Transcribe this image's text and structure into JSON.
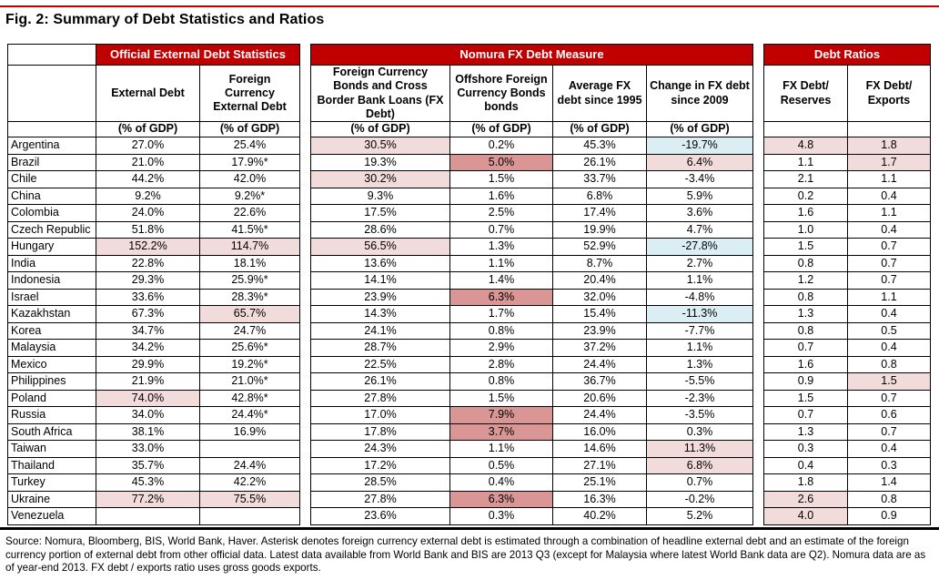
{
  "title": "Fig. 2: Summary of Debt Statistics and Ratios",
  "colors": {
    "header_bg": "#C00000",
    "top_rule_red": "#C00000",
    "highlight_light_pink": "#F2DCDB",
    "highlight_rose": "#D99694",
    "highlight_light_blue": "#DAEEF3",
    "border": "#000000"
  },
  "table": {
    "groups": [
      {
        "label": "Official External Debt Statistics",
        "span": 2
      },
      {
        "label": "Nomura FX Debt Measure",
        "span": 4
      },
      {
        "label": "Debt Ratios",
        "span": 2
      }
    ],
    "gap_after": [
      1,
      5
    ],
    "columns": [
      {
        "label": "External Debt",
        "unit": "(% of GDP)"
      },
      {
        "label": "Foreign Currency External Debt",
        "unit": "(% of GDP)"
      },
      {
        "label": "Foreign Currency Bonds and Cross Border Bank Loans (FX Debt)",
        "unit": "(% of GDP)"
      },
      {
        "label": "Offshore Foreign Currency Bonds bonds",
        "unit": "(% of GDP)"
      },
      {
        "label": "Average FX debt since 1995",
        "unit": "(% of GDP)"
      },
      {
        "label": "Change in FX debt since 2009",
        "unit": "(% of GDP)"
      },
      {
        "label": "FX Debt/ Reserves",
        "unit": ""
      },
      {
        "label": "FX Debt/ Exports",
        "unit": ""
      }
    ],
    "rows": [
      {
        "country": "Argentina",
        "values": [
          "27.0%",
          "25.4%",
          "30.5%",
          "0.2%",
          "45.3%",
          "-19.7%",
          "4.8",
          "1.8"
        ],
        "highlights": [
          "",
          "",
          "p",
          "",
          "",
          "b",
          "p",
          "p"
        ]
      },
      {
        "country": "Brazil",
        "values": [
          "21.0%",
          "17.9%*",
          "19.3%",
          "5.0%",
          "26.1%",
          "6.4%",
          "1.1",
          "1.7"
        ],
        "highlights": [
          "",
          "",
          "",
          "r",
          "",
          "p",
          "",
          "p"
        ]
      },
      {
        "country": "Chile",
        "values": [
          "44.2%",
          "42.0%",
          "30.2%",
          "1.5%",
          "33.7%",
          "-3.4%",
          "2.1",
          "1.1"
        ],
        "highlights": [
          "",
          "",
          "p",
          "",
          "",
          "",
          "",
          ""
        ]
      },
      {
        "country": "China",
        "values": [
          "9.2%",
          "9.2%*",
          "9.3%",
          "1.6%",
          "6.8%",
          "5.9%",
          "0.2",
          "0.4"
        ],
        "highlights": [
          "",
          "",
          "",
          "",
          "",
          "",
          "",
          ""
        ]
      },
      {
        "country": "Colombia",
        "values": [
          "24.0%",
          "22.6%",
          "17.5%",
          "2.5%",
          "17.4%",
          "3.6%",
          "1.6",
          "1.1"
        ],
        "highlights": [
          "",
          "",
          "",
          "",
          "",
          "",
          "",
          ""
        ]
      },
      {
        "country": "Czech Republic",
        "values": [
          "51.8%",
          "41.5%*",
          "28.6%",
          "0.7%",
          "19.9%",
          "4.7%",
          "1.0",
          "0.4"
        ],
        "highlights": [
          "",
          "",
          "",
          "",
          "",
          "",
          "",
          ""
        ]
      },
      {
        "country": "Hungary",
        "values": [
          "152.2%",
          "114.7%",
          "56.5%",
          "1.3%",
          "52.9%",
          "-27.8%",
          "1.5",
          "0.7"
        ],
        "highlights": [
          "p",
          "p",
          "p",
          "",
          "",
          "b",
          "",
          ""
        ]
      },
      {
        "country": "India",
        "values": [
          "22.8%",
          "18.1%",
          "13.6%",
          "1.1%",
          "8.7%",
          "2.7%",
          "0.8",
          "0.7"
        ],
        "highlights": [
          "",
          "",
          "",
          "",
          "",
          "",
          "",
          ""
        ]
      },
      {
        "country": "Indonesia",
        "values": [
          "29.3%",
          "25.9%*",
          "14.1%",
          "1.4%",
          "20.4%",
          "1.1%",
          "1.2",
          "0.7"
        ],
        "highlights": [
          "",
          "",
          "",
          "",
          "",
          "",
          "",
          ""
        ]
      },
      {
        "country": "Israel",
        "values": [
          "33.6%",
          "28.3%*",
          "23.9%",
          "6.3%",
          "32.0%",
          "-4.8%",
          "0.8",
          "1.1"
        ],
        "highlights": [
          "",
          "",
          "",
          "r",
          "",
          "",
          "",
          ""
        ]
      },
      {
        "country": "Kazakhstan",
        "values": [
          "67.3%",
          "65.7%",
          "14.3%",
          "1.7%",
          "15.4%",
          "-11.3%",
          "1.3",
          "0.4"
        ],
        "highlights": [
          "",
          "p",
          "",
          "",
          "",
          "b",
          "",
          ""
        ]
      },
      {
        "country": "Korea",
        "values": [
          "34.7%",
          "24.7%",
          "24.1%",
          "0.8%",
          "23.9%",
          "-7.7%",
          "0.8",
          "0.5"
        ],
        "highlights": [
          "",
          "",
          "",
          "",
          "",
          "",
          "",
          ""
        ]
      },
      {
        "country": "Malaysia",
        "values": [
          "34.2%",
          "25.6%*",
          "28.7%",
          "2.9%",
          "37.2%",
          "1.1%",
          "0.7",
          "0.4"
        ],
        "highlights": [
          "",
          "",
          "",
          "",
          "",
          "",
          "",
          ""
        ]
      },
      {
        "country": "Mexico",
        "values": [
          "29.9%",
          "19.2%*",
          "22.5%",
          "2.8%",
          "24.4%",
          "1.3%",
          "1.6",
          "0.8"
        ],
        "highlights": [
          "",
          "",
          "",
          "",
          "",
          "",
          "",
          ""
        ]
      },
      {
        "country": "Philippines",
        "values": [
          "21.9%",
          "21.0%*",
          "26.1%",
          "0.8%",
          "36.7%",
          "-5.5%",
          "0.9",
          "1.5"
        ],
        "highlights": [
          "",
          "",
          "",
          "",
          "",
          "",
          "",
          "p"
        ]
      },
      {
        "country": "Poland",
        "values": [
          "74.0%",
          "42.8%*",
          "27.8%",
          "1.5%",
          "20.6%",
          "-2.3%",
          "1.5",
          "0.7"
        ],
        "highlights": [
          "p",
          "",
          "",
          "",
          "",
          "",
          "",
          ""
        ]
      },
      {
        "country": "Russia",
        "values": [
          "34.0%",
          "24.4%*",
          "17.0%",
          "7.9%",
          "24.4%",
          "-3.5%",
          "0.7",
          "0.6"
        ],
        "highlights": [
          "",
          "",
          "",
          "r",
          "",
          "",
          "",
          ""
        ]
      },
      {
        "country": "South Africa",
        "values": [
          "38.1%",
          "16.9%",
          "17.8%",
          "3.7%",
          "16.0%",
          "0.3%",
          "1.3",
          "0.7"
        ],
        "highlights": [
          "",
          "",
          "",
          "r",
          "",
          "",
          "",
          ""
        ]
      },
      {
        "country": "Taiwan",
        "values": [
          "33.0%",
          "",
          "24.3%",
          "1.1%",
          "14.6%",
          "11.3%",
          "0.3",
          "0.4"
        ],
        "highlights": [
          "",
          "",
          "",
          "",
          "",
          "p",
          "",
          ""
        ]
      },
      {
        "country": "Thailand",
        "values": [
          "35.7%",
          "24.4%",
          "17.2%",
          "0.5%",
          "27.1%",
          "6.8%",
          "0.4",
          "0.3"
        ],
        "highlights": [
          "",
          "",
          "",
          "",
          "",
          "p",
          "",
          ""
        ]
      },
      {
        "country": "Turkey",
        "values": [
          "45.3%",
          "42.2%",
          "28.5%",
          "0.4%",
          "25.1%",
          "0.7%",
          "1.8",
          "1.4"
        ],
        "highlights": [
          "",
          "",
          "",
          "",
          "",
          "",
          "",
          ""
        ]
      },
      {
        "country": "Ukraine",
        "values": [
          "77.2%",
          "75.5%",
          "27.8%",
          "6.3%",
          "16.3%",
          "-0.2%",
          "2.6",
          "0.8"
        ],
        "highlights": [
          "p",
          "p",
          "",
          "r",
          "",
          "",
          "p",
          ""
        ]
      },
      {
        "country": "Venezuela",
        "values": [
          "",
          "",
          "23.6%",
          "0.3%",
          "40.2%",
          "5.2%",
          "4.0",
          "0.9"
        ],
        "highlights": [
          "",
          "",
          "",
          "",
          "",
          "",
          "p",
          ""
        ]
      }
    ]
  },
  "footer": "Source: Nomura, Bloomberg, BIS, World Bank, Haver. Asterisk denotes foreign currency external debt is estimated through a combination of headline external debt and an estimate of the foreign currency portion of external debt from other official data. Latest data available from World Bank and BIS are 2013 Q3 (except for Malaysia where latest World Bank data are Q2). Nomura data are as of year-end 2013. FX debt / exports ratio uses gross goods exports."
}
